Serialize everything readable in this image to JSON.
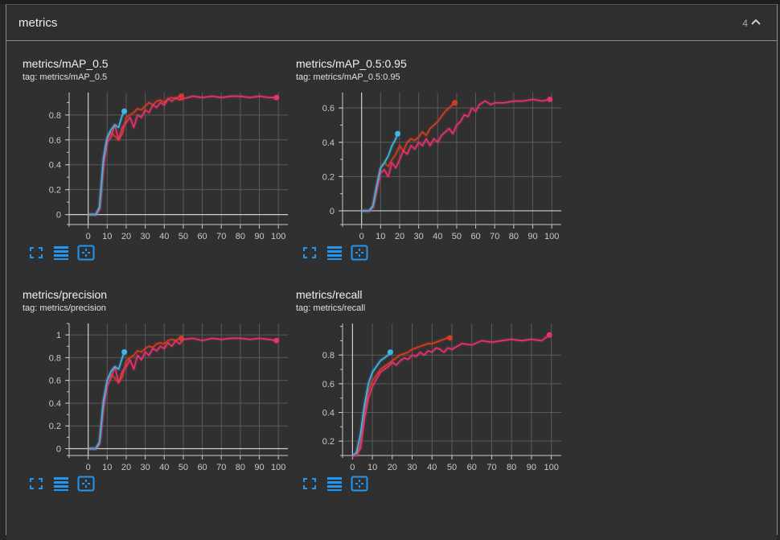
{
  "panel": {
    "title": "metrics",
    "count": "4"
  },
  "colors": {
    "accent_blue": "#2196f3",
    "series_red": "#d43e1f",
    "series_pink": "#e8326e",
    "series_cyan": "#3fb7e8",
    "grid": "#5a5a5a",
    "axis": "#c8c8c8"
  },
  "icons": {
    "toggle": "chevron-up-icon",
    "expand": "fullscreen-icon",
    "log": "list-lines-icon",
    "fit": "fit-domain-icon"
  },
  "cards": [
    {
      "title": "metrics/mAP_0.5",
      "tag": "tag: metrics/mAP_0.5"
    },
    {
      "title": "metrics/mAP_0.5:0.95",
      "tag": "tag: metrics/mAP_0.5:0.95"
    },
    {
      "title": "metrics/precision",
      "tag": "tag: metrics/precision"
    },
    {
      "title": "metrics/recall",
      "tag": "tag: metrics/recall"
    }
  ],
  "chart_data": [
    {
      "type": "line",
      "xlim": [
        -10,
        105
      ],
      "ylim": [
        -0.08,
        0.98
      ],
      "xticks": [
        0,
        10,
        20,
        30,
        40,
        50,
        60,
        70,
        80,
        90,
        100
      ],
      "yticks": [
        0,
        0.2,
        0.4,
        0.6,
        0.8
      ],
      "grid": true,
      "legend": "none",
      "series": [
        {
          "color": "#d43e1f",
          "x": [
            0,
            2,
            4,
            6,
            8,
            10,
            12,
            14,
            16,
            18,
            20,
            22,
            24,
            26,
            28,
            30,
            32,
            34,
            36,
            38,
            40,
            42,
            44,
            46,
            48,
            49
          ],
          "values": [
            0,
            0,
            0,
            0.05,
            0.42,
            0.6,
            0.66,
            0.63,
            0.6,
            0.65,
            0.78,
            0.8,
            0.82,
            0.85,
            0.84,
            0.87,
            0.9,
            0.88,
            0.91,
            0.92,
            0.9,
            0.93,
            0.94,
            0.93,
            0.95,
            0.95
          ]
        },
        {
          "color": "#e8326e",
          "x": [
            0,
            2,
            4,
            6,
            8,
            10,
            12,
            14,
            16,
            18,
            20,
            22,
            24,
            26,
            28,
            30,
            32,
            34,
            36,
            38,
            40,
            42,
            44,
            46,
            48,
            50,
            55,
            60,
            65,
            70,
            75,
            80,
            85,
            90,
            95,
            99
          ],
          "values": [
            0,
            0,
            0,
            0.04,
            0.38,
            0.58,
            0.62,
            0.72,
            0.6,
            0.7,
            0.74,
            0.78,
            0.7,
            0.8,
            0.78,
            0.84,
            0.82,
            0.88,
            0.86,
            0.9,
            0.88,
            0.93,
            0.91,
            0.94,
            0.92,
            0.93,
            0.95,
            0.94,
            0.95,
            0.94,
            0.95,
            0.95,
            0.94,
            0.95,
            0.94,
            0.94
          ]
        },
        {
          "color": "#3fb7e8",
          "x": [
            0,
            2,
            4,
            6,
            8,
            10,
            12,
            14,
            16,
            18,
            19
          ],
          "values": [
            0,
            0,
            0,
            0.06,
            0.45,
            0.62,
            0.68,
            0.72,
            0.7,
            0.8,
            0.83
          ]
        }
      ]
    },
    {
      "type": "line",
      "xlim": [
        -10,
        105
      ],
      "ylim": [
        -0.08,
        0.69
      ],
      "xticks": [
        0,
        10,
        20,
        30,
        40,
        50,
        60,
        70,
        80,
        90,
        100
      ],
      "yticks": [
        0,
        0.2,
        0.4,
        0.6
      ],
      "grid": true,
      "legend": "none",
      "series": [
        {
          "color": "#d43e1f",
          "x": [
            0,
            2,
            4,
            6,
            8,
            10,
            12,
            14,
            16,
            18,
            20,
            22,
            24,
            26,
            28,
            30,
            32,
            34,
            36,
            38,
            40,
            42,
            44,
            46,
            48,
            49
          ],
          "values": [
            0,
            0,
            0,
            0.02,
            0.15,
            0.25,
            0.28,
            0.26,
            0.3,
            0.33,
            0.38,
            0.35,
            0.4,
            0.42,
            0.41,
            0.43,
            0.46,
            0.44,
            0.48,
            0.5,
            0.52,
            0.55,
            0.58,
            0.6,
            0.62,
            0.63
          ]
        },
        {
          "color": "#e8326e",
          "x": [
            0,
            2,
            4,
            6,
            8,
            10,
            12,
            14,
            16,
            18,
            20,
            22,
            24,
            26,
            28,
            30,
            32,
            34,
            36,
            38,
            40,
            42,
            44,
            46,
            48,
            50,
            52,
            54,
            56,
            58,
            60,
            62,
            65,
            68,
            70,
            75,
            80,
            85,
            90,
            95,
            99
          ],
          "values": [
            0,
            0,
            0,
            0.02,
            0.12,
            0.22,
            0.24,
            0.2,
            0.28,
            0.25,
            0.3,
            0.35,
            0.33,
            0.38,
            0.36,
            0.4,
            0.38,
            0.42,
            0.38,
            0.42,
            0.4,
            0.44,
            0.46,
            0.48,
            0.45,
            0.5,
            0.52,
            0.56,
            0.55,
            0.6,
            0.58,
            0.62,
            0.64,
            0.62,
            0.63,
            0.63,
            0.64,
            0.64,
            0.65,
            0.64,
            0.65
          ]
        },
        {
          "color": "#3fb7e8",
          "x": [
            0,
            2,
            4,
            6,
            8,
            10,
            12,
            14,
            16,
            18,
            19
          ],
          "values": [
            0,
            0,
            0,
            0.03,
            0.15,
            0.25,
            0.28,
            0.32,
            0.38,
            0.42,
            0.45
          ]
        }
      ]
    },
    {
      "type": "line",
      "xlim": [
        -10,
        105
      ],
      "ylim": [
        -0.06,
        1.1
      ],
      "xticks": [
        0,
        10,
        20,
        30,
        40,
        50,
        60,
        70,
        80,
        90,
        100
      ],
      "yticks": [
        0,
        0.2,
        0.4,
        0.6,
        0.8,
        1
      ],
      "grid": true,
      "legend": "none",
      "series": [
        {
          "color": "#d43e1f",
          "x": [
            0,
            2,
            4,
            6,
            8,
            10,
            12,
            14,
            16,
            18,
            20,
            22,
            24,
            26,
            28,
            30,
            32,
            34,
            36,
            38,
            40,
            42,
            44,
            46,
            48,
            49
          ],
          "values": [
            0,
            0,
            0,
            0.05,
            0.4,
            0.6,
            0.65,
            0.62,
            0.58,
            0.63,
            0.77,
            0.8,
            0.82,
            0.86,
            0.85,
            0.88,
            0.9,
            0.89,
            0.92,
            0.93,
            0.92,
            0.95,
            0.96,
            0.95,
            0.97,
            0.97
          ]
        },
        {
          "color": "#e8326e",
          "x": [
            0,
            2,
            4,
            6,
            8,
            10,
            12,
            14,
            16,
            18,
            20,
            22,
            24,
            26,
            28,
            30,
            32,
            34,
            36,
            38,
            40,
            42,
            44,
            46,
            48,
            50,
            55,
            60,
            65,
            70,
            75,
            80,
            85,
            90,
            95,
            99
          ],
          "values": [
            0,
            0,
            0,
            0.04,
            0.35,
            0.55,
            0.62,
            0.72,
            0.58,
            0.68,
            0.72,
            0.78,
            0.7,
            0.82,
            0.78,
            0.85,
            0.82,
            0.88,
            0.86,
            0.9,
            0.88,
            0.93,
            0.9,
            0.95,
            0.92,
            0.96,
            0.97,
            0.95,
            0.97,
            0.96,
            0.97,
            0.97,
            0.96,
            0.97,
            0.96,
            0.95
          ]
        },
        {
          "color": "#3fb7e8",
          "x": [
            0,
            2,
            4,
            6,
            8,
            10,
            12,
            14,
            16,
            18,
            19
          ],
          "values": [
            0,
            0,
            0,
            0.06,
            0.42,
            0.6,
            0.68,
            0.72,
            0.7,
            0.8,
            0.85
          ]
        }
      ]
    },
    {
      "type": "line",
      "xlim": [
        -5,
        105
      ],
      "ylim": [
        0.1,
        1.02
      ],
      "xticks": [
        0,
        10,
        20,
        30,
        40,
        50,
        60,
        70,
        80,
        90,
        100
      ],
      "yticks": [
        0.2,
        0.4,
        0.6,
        0.8
      ],
      "grid": true,
      "legend": "none",
      "series": [
        {
          "color": "#d43e1f",
          "x": [
            0,
            2,
            4,
            6,
            8,
            10,
            12,
            14,
            16,
            18,
            20,
            22,
            24,
            26,
            28,
            30,
            32,
            34,
            36,
            38,
            40,
            42,
            44,
            46,
            48,
            49
          ],
          "values": [
            0.1,
            0.1,
            0.18,
            0.4,
            0.55,
            0.62,
            0.66,
            0.7,
            0.72,
            0.74,
            0.76,
            0.78,
            0.8,
            0.81,
            0.82,
            0.84,
            0.85,
            0.86,
            0.87,
            0.88,
            0.88,
            0.89,
            0.9,
            0.91,
            0.92,
            0.92
          ]
        },
        {
          "color": "#e8326e",
          "x": [
            0,
            2,
            4,
            6,
            8,
            10,
            12,
            14,
            16,
            18,
            20,
            22,
            24,
            26,
            28,
            30,
            32,
            34,
            36,
            38,
            40,
            42,
            44,
            46,
            48,
            50,
            55,
            60,
            65,
            70,
            75,
            80,
            85,
            90,
            95,
            99
          ],
          "values": [
            0.1,
            0.1,
            0.15,
            0.35,
            0.5,
            0.58,
            0.63,
            0.68,
            0.7,
            0.72,
            0.75,
            0.73,
            0.76,
            0.78,
            0.77,
            0.8,
            0.79,
            0.82,
            0.8,
            0.83,
            0.82,
            0.85,
            0.84,
            0.82,
            0.85,
            0.84,
            0.88,
            0.87,
            0.9,
            0.89,
            0.9,
            0.91,
            0.9,
            0.91,
            0.9,
            0.94
          ]
        },
        {
          "color": "#3fb7e8",
          "x": [
            0,
            2,
            4,
            6,
            8,
            10,
            12,
            14,
            16,
            18,
            19
          ],
          "values": [
            0.1,
            0.12,
            0.25,
            0.45,
            0.6,
            0.68,
            0.72,
            0.76,
            0.78,
            0.8,
            0.82
          ]
        }
      ]
    }
  ]
}
